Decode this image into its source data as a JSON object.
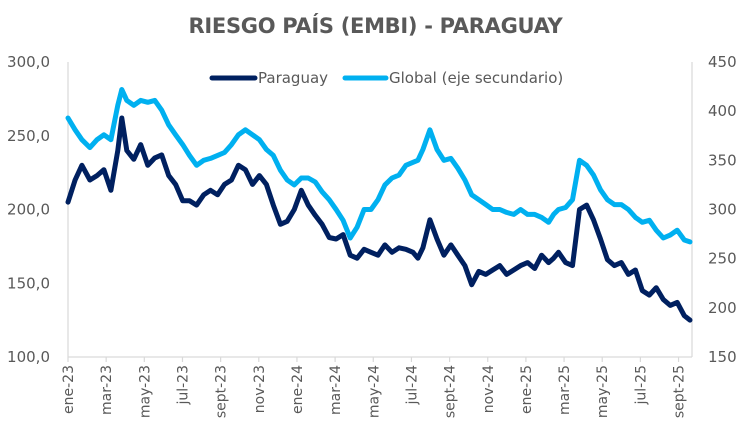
{
  "chart_data": {
    "type": "line",
    "title": "RIESGO PAÍS (EMBI) - PARAGUAY",
    "xlabel": "",
    "ylabel": "",
    "y_left": {
      "lim": [
        100,
        300
      ],
      "ticks": [
        "100,0",
        "150,0",
        "200,0",
        "250,0",
        "300,0"
      ],
      "tick_values": [
        100,
        150,
        200,
        250,
        300
      ]
    },
    "y_right": {
      "lim": [
        150,
        450
      ],
      "ticks": [
        "150",
        "200",
        "250",
        "300",
        "350",
        "400",
        "450"
      ],
      "tick_values": [
        150,
        200,
        250,
        300,
        350,
        400,
        450
      ]
    },
    "x_range_months": [
      0,
      32.6
    ],
    "x_tick_labels": [
      "ene-23",
      "mar-23",
      "may-23",
      "jul-23",
      "sept-23",
      "nov-23",
      "ene-24",
      "mar-24",
      "may-24",
      "jul-24",
      "sept-24",
      "nov-24",
      "ene-25",
      "mar-25",
      "may-25",
      "jul-25",
      "sept-25"
    ],
    "x_tick_months": [
      0,
      2,
      4,
      6,
      8,
      10,
      12,
      14,
      16,
      18,
      20,
      22,
      24,
      26,
      28,
      30,
      32
    ],
    "grid": false,
    "legend_position": "top-center",
    "series": [
      {
        "name": "Paraguay",
        "axis": "left",
        "color": "#002060",
        "x_months": [
          0,
          0.37,
          0.73,
          1.15,
          1.52,
          1.88,
          2.25,
          2.61,
          2.82,
          3.08,
          3.45,
          3.81,
          4.18,
          4.55,
          4.91,
          5.28,
          5.64,
          6.01,
          6.37,
          6.74,
          7.11,
          7.47,
          7.84,
          8.2,
          8.57,
          8.93,
          9.3,
          9.67,
          10.03,
          10.4,
          10.76,
          11.13,
          11.49,
          11.86,
          12.23,
          12.59,
          12.96,
          13.32,
          13.69,
          14.05,
          14.42,
          14.79,
          15.15,
          15.52,
          15.88,
          16.25,
          16.61,
          16.98,
          17.35,
          17.71,
          18.08,
          18.34,
          18.6,
          18.97,
          19.34,
          19.7,
          20.07,
          20.43,
          20.8,
          21.16,
          21.53,
          21.9,
          22.26,
          22.63,
          22.99,
          23.36,
          23.72,
          24.09,
          24.46,
          24.82,
          25.19,
          25.45,
          25.71,
          26.08,
          26.44,
          26.81,
          27.18,
          27.54,
          27.91,
          28.27,
          28.64,
          29.0,
          29.37,
          29.74,
          30.1,
          30.47,
          30.83,
          31.2,
          31.56,
          31.93,
          32.3,
          32.6
        ],
        "values": [
          205,
          220,
          230,
          220,
          223,
          227,
          213,
          240,
          262,
          240,
          234,
          244,
          230,
          235,
          237,
          223,
          217,
          206,
          206,
          203,
          210,
          213,
          210,
          217,
          220,
          230,
          227,
          217,
          223,
          217,
          203,
          190,
          192,
          200,
          213,
          203,
          196,
          190,
          181,
          180,
          183,
          169,
          167,
          173,
          171,
          169,
          176,
          171,
          174,
          173,
          171,
          167,
          174,
          193,
          180,
          169,
          176,
          169,
          162,
          149,
          158,
          156,
          159,
          162,
          156,
          159,
          162,
          164,
          160,
          169,
          164,
          167,
          171,
          164,
          162,
          200,
          203,
          193,
          180,
          166,
          162,
          164,
          156,
          159,
          145,
          142,
          147,
          139,
          135,
          137,
          128,
          125
        ]
      },
      {
        "name": "Global (eje secundario)",
        "axis": "right",
        "color": "#00B0F0",
        "x_months": [
          0,
          0.37,
          0.73,
          1.15,
          1.52,
          1.88,
          2.25,
          2.61,
          2.82,
          3.08,
          3.45,
          3.81,
          4.18,
          4.55,
          4.91,
          5.28,
          5.64,
          6.01,
          6.37,
          6.74,
          7.11,
          7.47,
          7.84,
          8.2,
          8.57,
          8.93,
          9.3,
          9.67,
          10.03,
          10.4,
          10.76,
          11.13,
          11.49,
          11.86,
          12.23,
          12.59,
          12.96,
          13.32,
          13.69,
          14.05,
          14.42,
          14.79,
          15.15,
          15.52,
          15.88,
          16.25,
          16.61,
          16.98,
          17.35,
          17.71,
          18.08,
          18.34,
          18.6,
          18.97,
          19.34,
          19.7,
          20.07,
          20.43,
          20.8,
          21.16,
          21.53,
          21.9,
          22.26,
          22.63,
          22.99,
          23.36,
          23.72,
          24.09,
          24.46,
          24.82,
          25.19,
          25.45,
          25.71,
          26.08,
          26.44,
          26.81,
          27.18,
          27.54,
          27.91,
          28.27,
          28.64,
          29.0,
          29.37,
          29.74,
          30.1,
          30.47,
          30.83,
          31.2,
          31.56,
          31.93,
          32.3,
          32.6
        ],
        "values": [
          393,
          381,
          371,
          363,
          371,
          376,
          371,
          406,
          422,
          411,
          406,
          411,
          409,
          411,
          401,
          386,
          376,
          366,
          355,
          345,
          350,
          352,
          355,
          358,
          366,
          376,
          381,
          376,
          371,
          361,
          355,
          340,
          330,
          325,
          332,
          332,
          328,
          318,
          310,
          300,
          289,
          271,
          282,
          300,
          300,
          310,
          325,
          332,
          335,
          345,
          348,
          350,
          361,
          381,
          361,
          350,
          352,
          342,
          330,
          315,
          310,
          305,
          300,
          300,
          297,
          295,
          300,
          295,
          295,
          292,
          287,
          295,
          300,
          302,
          310,
          350,
          345,
          335,
          320,
          310,
          305,
          305,
          300,
          292,
          287,
          289,
          279,
          271,
          274,
          279,
          269,
          267
        ]
      }
    ]
  },
  "legend": {
    "items": [
      "Paraguay",
      "Global (eje secundario)"
    ]
  }
}
